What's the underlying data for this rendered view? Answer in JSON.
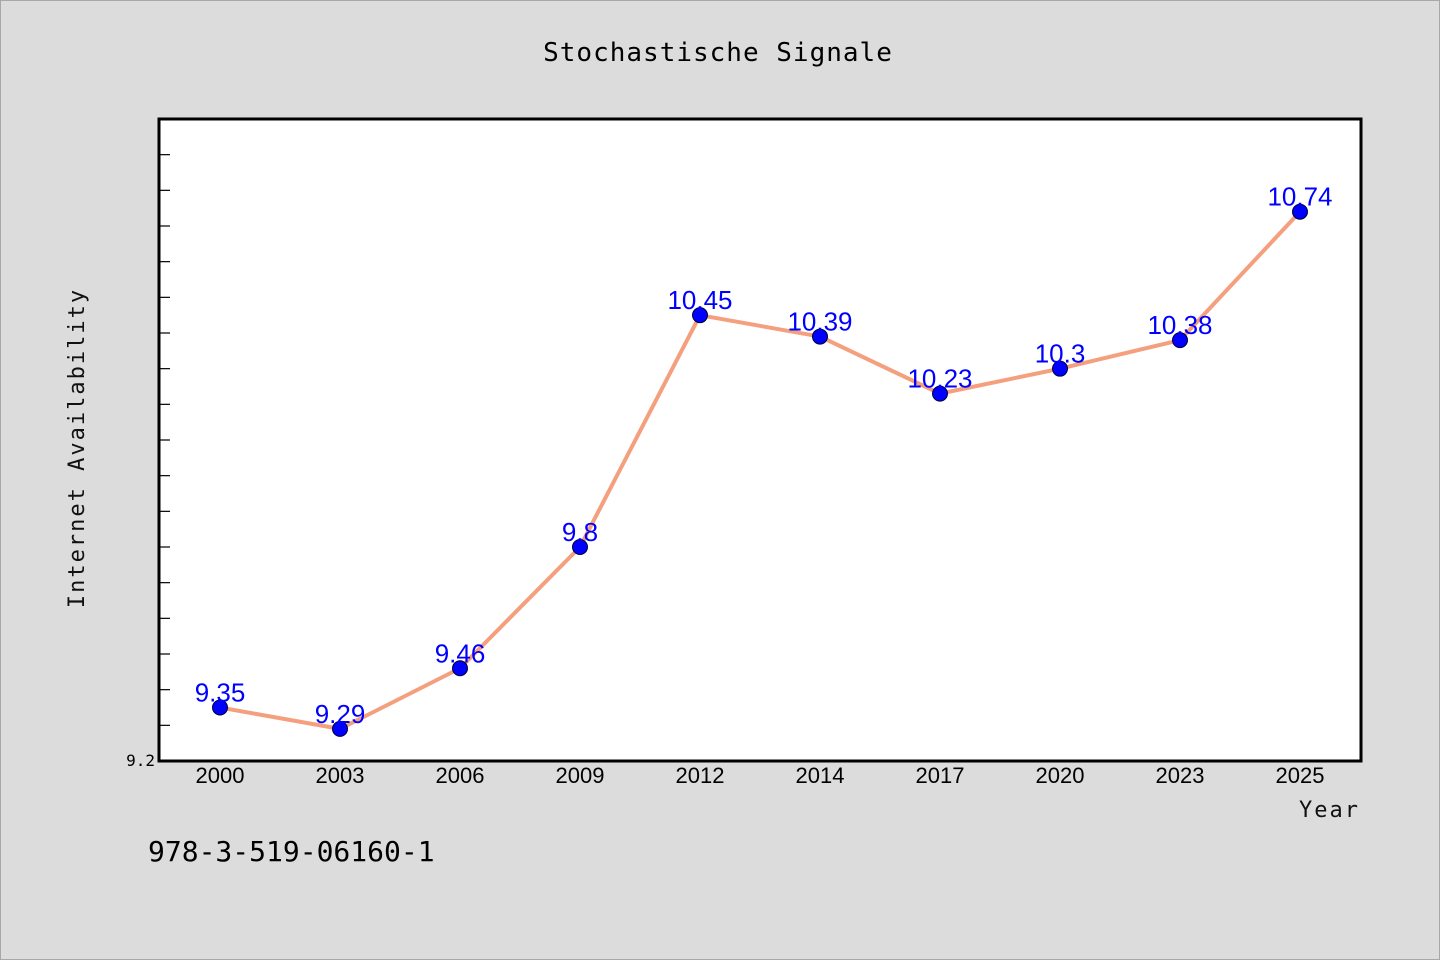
{
  "chart_data": {
    "type": "line",
    "title": "Stochastische Signale",
    "xlabel": "Year",
    "ylabel": "Internet Availability",
    "categories": [
      "2000",
      "2003",
      "2006",
      "2009",
      "2012",
      "2014",
      "2017",
      "2020",
      "2023",
      "2025"
    ],
    "series": [
      {
        "values": [
          9.35,
          9.29,
          9.46,
          9.8,
          10.45,
          10.39,
          10.23,
          10.3,
          10.38,
          10.74
        ],
        "data_labels": [
          "9.35",
          "9.29",
          "9.46",
          "9.8",
          "10.45",
          "10.39",
          "10.23",
          "10.3",
          "10.38",
          "10.74"
        ]
      }
    ],
    "y_tick_labels": [
      "9.2"
    ],
    "ylim": [
      9.2,
      11.0
    ],
    "grid": false,
    "legend": "none",
    "colors": {
      "line": "#f4a07e",
      "marker": "#0000ff",
      "data_label": "#0000ff",
      "plot_background": "#ffffff",
      "figure_background": "#dcdcdc"
    }
  },
  "footnote": "978-3-519-06160-1"
}
